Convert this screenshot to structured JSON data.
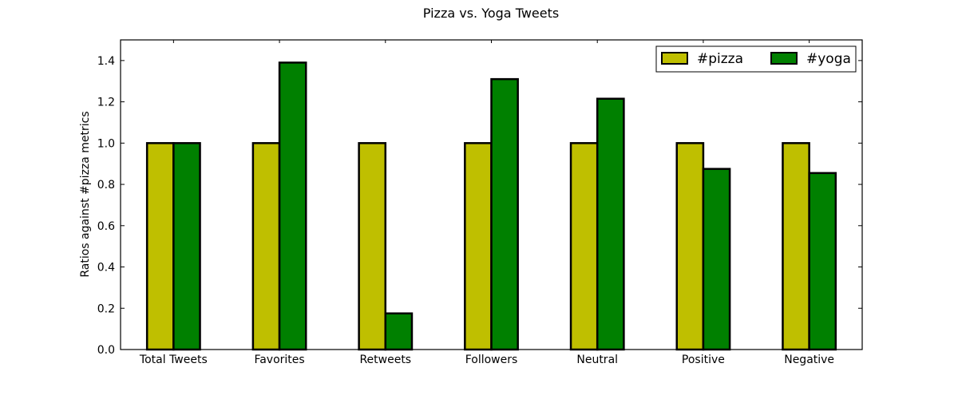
{
  "chart_data": {
    "type": "bar",
    "title": "Pizza vs. Yoga Tweets",
    "xlabel": "",
    "ylabel": "Ratios against #pizza metrics",
    "categories": [
      "Total Tweets",
      "Favorites",
      "Retweets",
      "Followers",
      "Neutral",
      "Positive",
      "Negative"
    ],
    "series": [
      {
        "name": "#pizza",
        "values": [
          1.0,
          1.0,
          1.0,
          1.0,
          1.0,
          1.0,
          1.0
        ],
        "color": "#bfbf00"
      },
      {
        "name": "#yoga",
        "values": [
          1.0,
          1.39,
          0.175,
          1.31,
          1.215,
          0.875,
          0.855
        ],
        "color": "#008000"
      }
    ],
    "ylim": [
      0,
      1.5
    ],
    "yticks": [
      0.0,
      0.2,
      0.4,
      0.6,
      0.8,
      1.0,
      1.2,
      1.4
    ],
    "ytick_labels": [
      "0.0",
      "0.2",
      "0.4",
      "0.6",
      "0.8",
      "1.0",
      "1.2",
      "1.4"
    ],
    "grid": false,
    "legend_position": "top-right"
  }
}
